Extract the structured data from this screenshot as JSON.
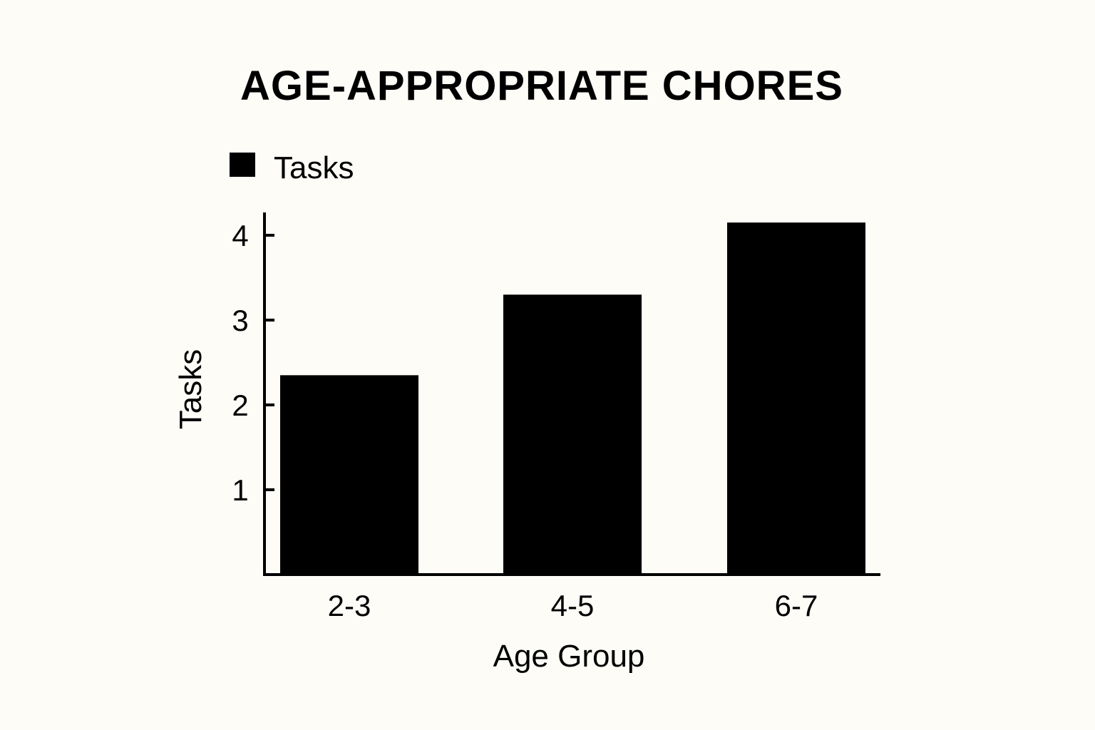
{
  "chart_data": {
    "type": "bar",
    "title": "AGE-APPROPRIATE CHORES",
    "categories": [
      "2-3",
      "4-5",
      "6-7"
    ],
    "series": [
      {
        "name": "Tasks",
        "values": [
          2.35,
          3.3,
          4.15
        ]
      }
    ],
    "xlabel": "Age Group",
    "ylabel": "Tasks",
    "ylim": [
      0,
      4.25
    ],
    "yticks": [
      "1",
      "2",
      "3",
      "4"
    ],
    "grid": false,
    "legend_position": "top-left",
    "colors": {
      "bar": "#000000",
      "background": "#fdfcf7"
    }
  }
}
